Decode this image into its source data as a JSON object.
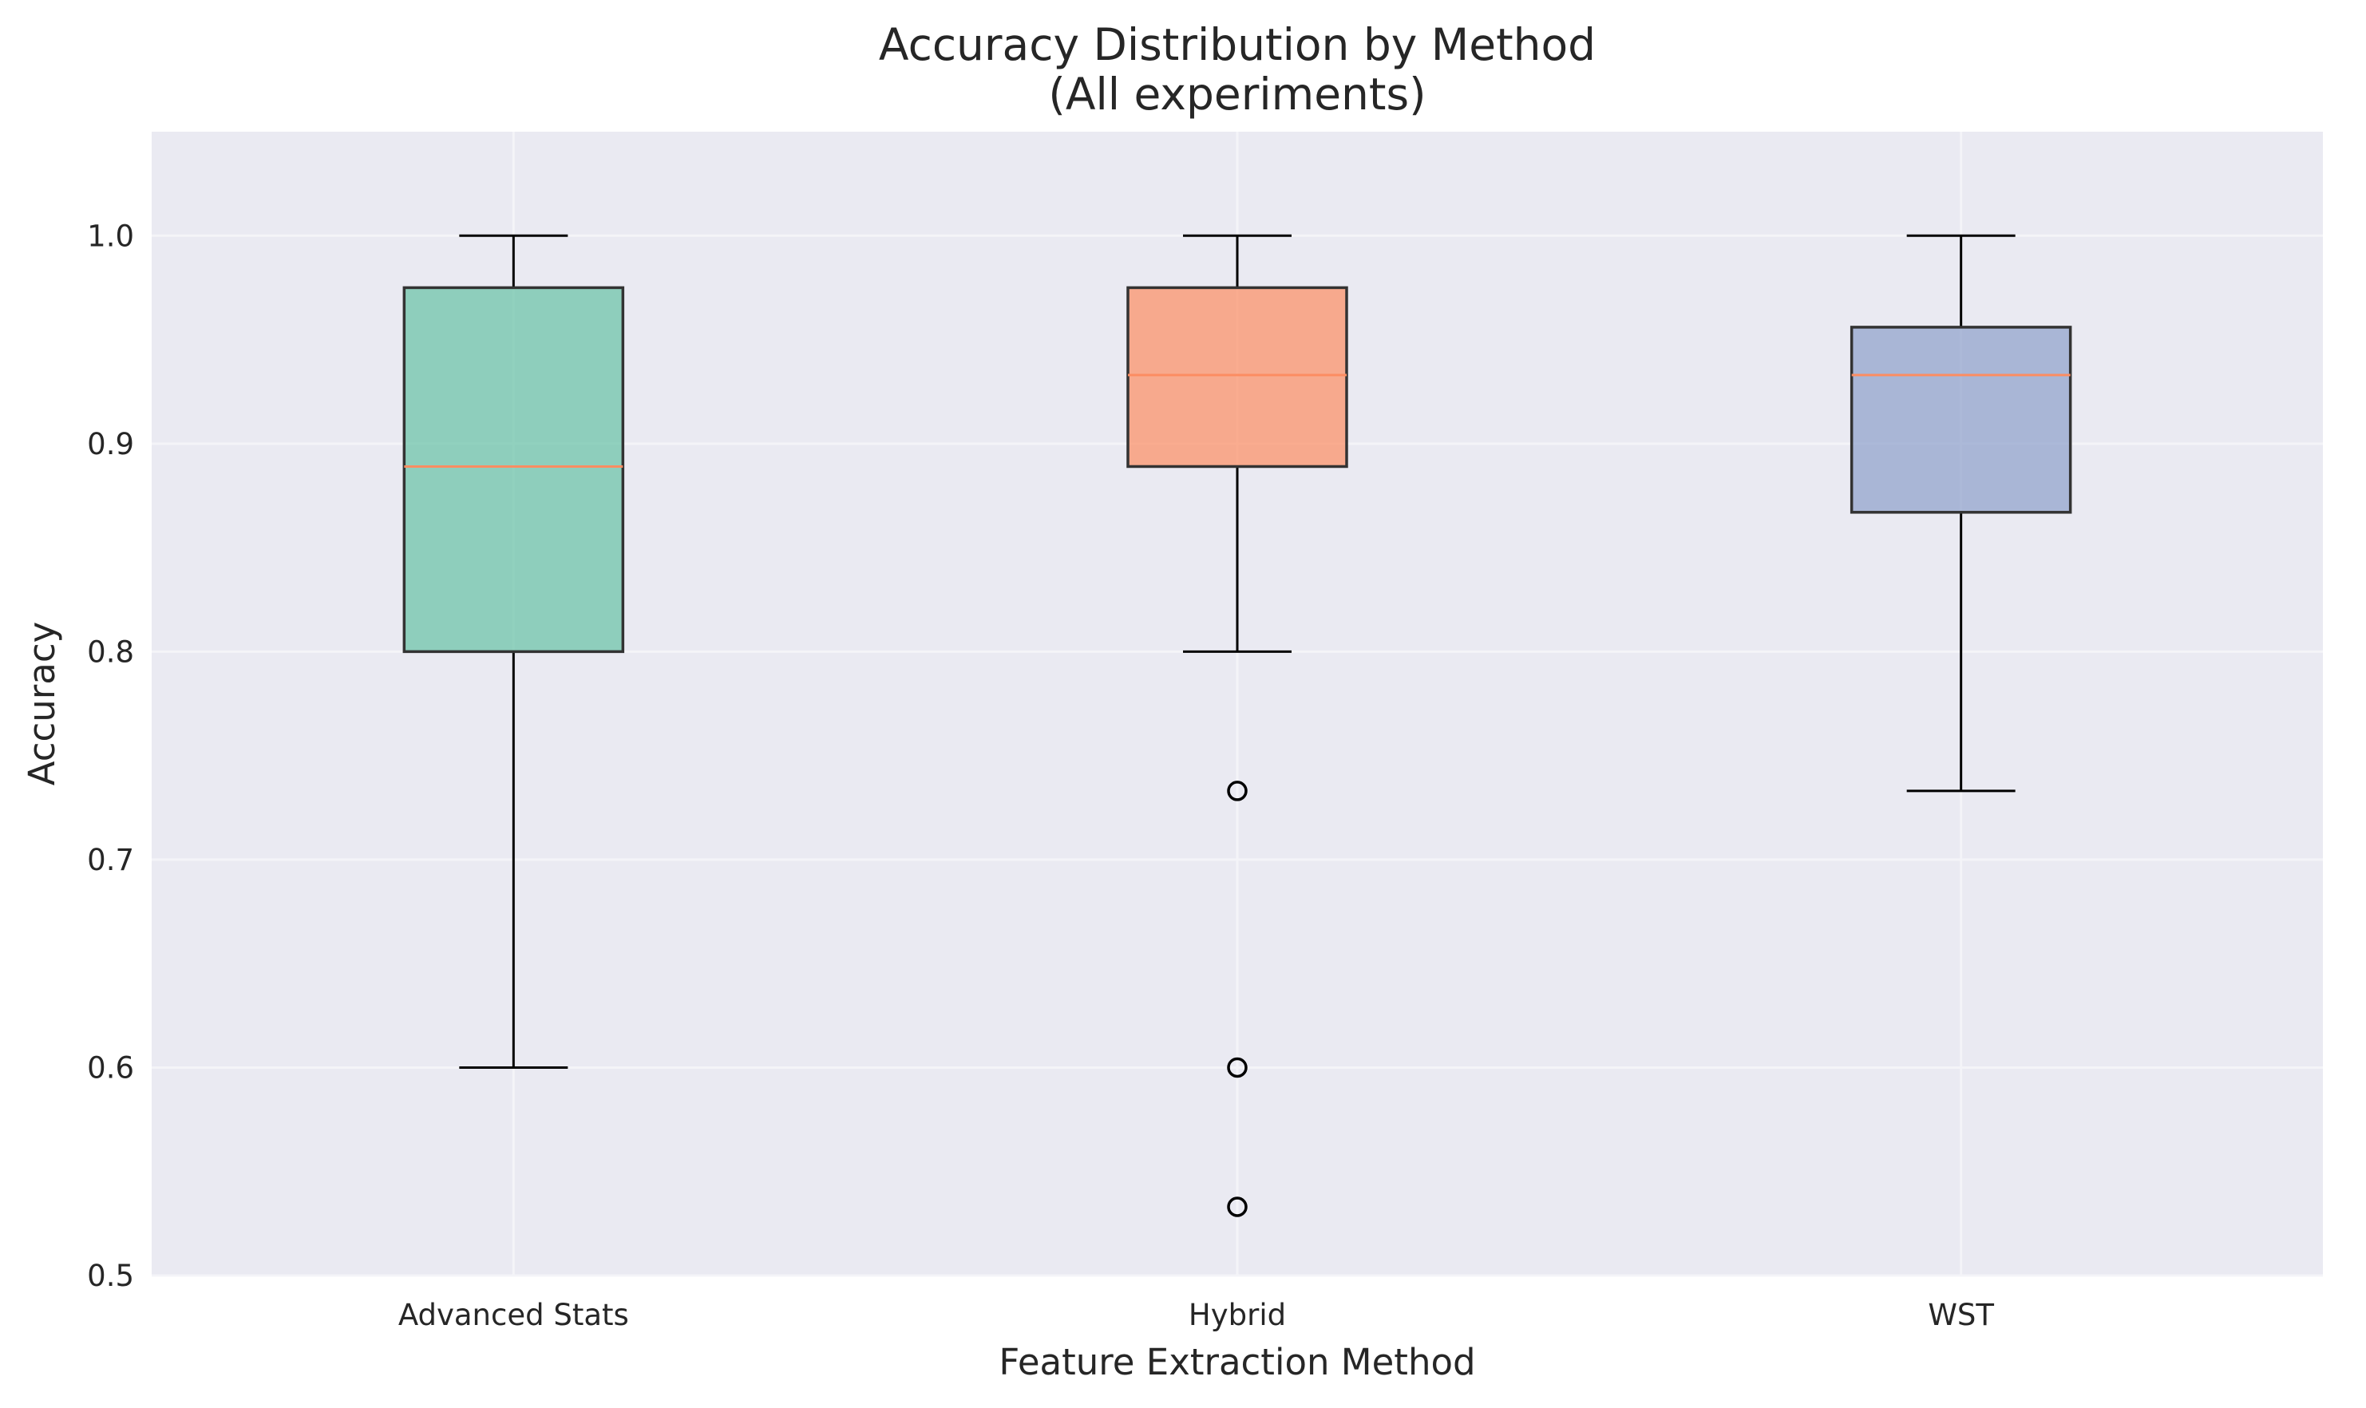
{
  "chart_data": {
    "type": "box",
    "title": "Accuracy Distribution by Method",
    "subtitle": "(All experiments)",
    "xlabel": "Feature Extraction Method",
    "ylabel": "Accuracy",
    "ylim": [
      0.5,
      1.05
    ],
    "yticks": [
      "0.5",
      "0.6",
      "0.7",
      "0.8",
      "0.9",
      "1.0"
    ],
    "grid": true,
    "background": "#EAEAF2",
    "median_color": "#FC8D62",
    "categories": [
      "Advanced Stats",
      "Hybrid",
      "WST"
    ],
    "series": [
      {
        "category": "Advanced Stats",
        "color": "#66C2A5",
        "whisker_low": 0.6,
        "q1": 0.8,
        "median": 0.889,
        "q3": 0.975,
        "whisker_high": 1.0,
        "outliers": []
      },
      {
        "category": "Hybrid",
        "color": "#FC8D62",
        "whisker_low": 0.8,
        "q1": 0.889,
        "median": 0.933,
        "q3": 0.975,
        "whisker_high": 1.0,
        "outliers": [
          0.733,
          0.6,
          0.533
        ]
      },
      {
        "category": "WST",
        "color": "#8DA0CB",
        "whisker_low": 0.733,
        "q1": 0.867,
        "median": 0.933,
        "q3": 0.956,
        "whisker_high": 1.0,
        "outliers": []
      }
    ]
  }
}
